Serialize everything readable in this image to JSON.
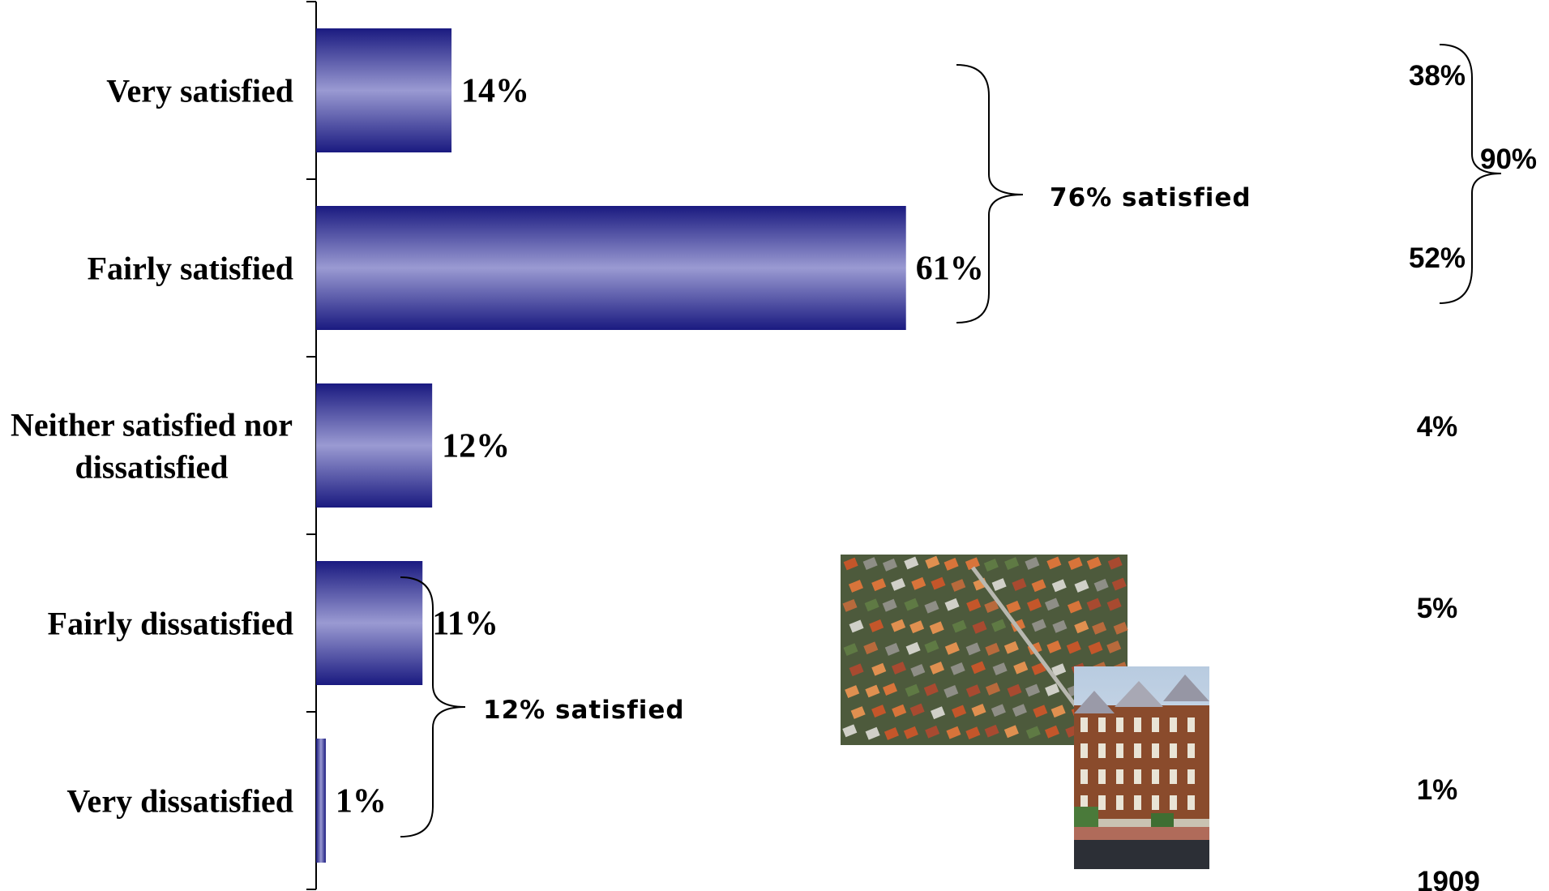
{
  "chart_data": {
    "type": "bar",
    "orientation": "horizontal",
    "categories": [
      "Very satisfied",
      "Fairly satisfied",
      "Neither satisfied nor dissatisfied",
      "Fairly dissatisfied",
      "Very dissatisfied"
    ],
    "category_lines": [
      [
        "Very satisfied"
      ],
      [
        "Fairly satisfied"
      ],
      [
        "Neither satisfied nor",
        "dissatisfied"
      ],
      [
        "Fairly dissatisfied"
      ],
      [
        "Very dissatisfied"
      ]
    ],
    "values": [
      14,
      61,
      12,
      11,
      1
    ],
    "value_labels": [
      "14%",
      "61%",
      "12%",
      "11%",
      "1%"
    ],
    "xlim": [
      0,
      100
    ],
    "grid": false,
    "groups": [
      {
        "label": "76% satisfied",
        "categories": [
          "Very satisfied",
          "Fairly satisfied"
        ]
      },
      {
        "label": "12% satisfied",
        "categories": [
          "Fairly dissatisfied",
          "Very dissatisfied"
        ]
      }
    ],
    "comparison": {
      "heading": "1909",
      "values": [
        "38%",
        "52%",
        "4%",
        "5%",
        "1%"
      ],
      "group": {
        "label": "90%",
        "categories": [
          "Very satisfied",
          "Fairly satisfied"
        ]
      }
    },
    "colors": {
      "bar_edge": "#1a1a80",
      "bar_center": "#9a9ad2"
    },
    "illustration": [
      "aerial-suburb-photo",
      "townhouses-photo"
    ]
  }
}
